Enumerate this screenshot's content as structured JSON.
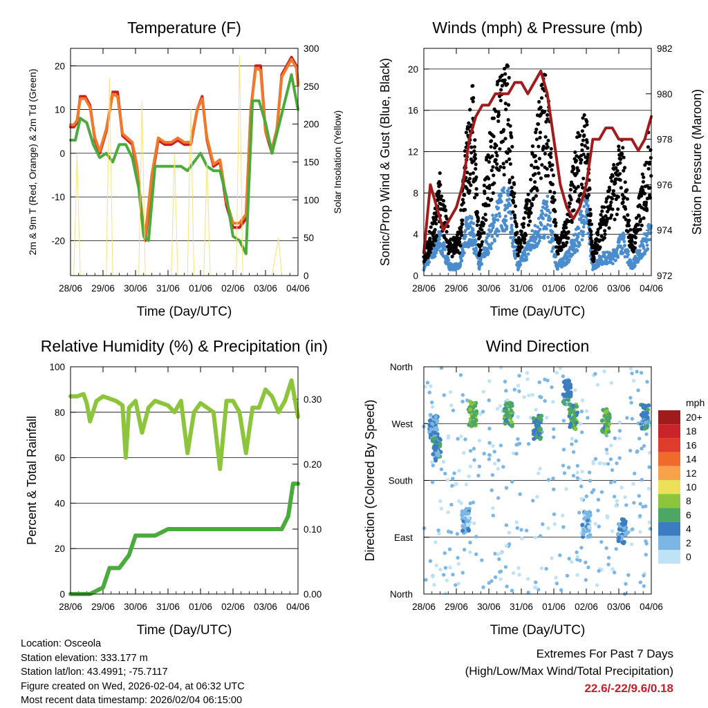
{
  "chart_data": [
    {
      "type": "line",
      "title": "Temperature (F)",
      "xlabel": "Time (Day/UTC)",
      "ylabel": "2m & 9m T (Red, Orange) & 2m Td (Green)",
      "y2label": "Solar Insolation (Yellow)",
      "categories": [
        "28/06",
        "29/06",
        "30/06",
        "31/06",
        "01/06",
        "02/06",
        "03/06",
        "04/06"
      ],
      "ylim": [
        -28,
        24
      ],
      "yticks": [
        "20",
        "10",
        "0",
        "-10",
        "-20"
      ],
      "yticks_values": [
        20,
        10,
        0,
        -10,
        -20
      ],
      "y2lim": [
        0,
        300
      ],
      "y2ticks": [
        "300",
        "250",
        "200",
        "150",
        "100",
        "50",
        "0"
      ],
      "y2ticks_values": [
        300,
        250,
        200,
        150,
        100,
        50,
        0
      ],
      "series": [
        {
          "name": "2m T",
          "color": "#c81e1e",
          "x": [
            0,
            0.1,
            0.2,
            0.3,
            0.45,
            0.6,
            0.75,
            0.9,
            1.1,
            1.3,
            1.45,
            1.6,
            1.75,
            1.9,
            2.05,
            2.2,
            2.3,
            2.5,
            2.7,
            2.9,
            3.1,
            3.3,
            3.5,
            3.7,
            3.9,
            4.05,
            4.2,
            4.4,
            4.6,
            4.8,
            5.0,
            5.2,
            5.4,
            5.55,
            5.7,
            5.85,
            6.0,
            6.2,
            6.35,
            6.5,
            6.65,
            6.8,
            6.95,
            7.0
          ],
          "y": [
            6,
            6,
            7,
            13,
            13,
            11,
            3,
            0,
            5,
            14,
            14,
            4,
            3,
            2,
            -4,
            -15,
            -20,
            -6,
            3,
            2,
            2,
            3,
            2,
            2,
            10,
            13,
            3,
            -3,
            -2,
            -12,
            -17,
            -17,
            -15,
            10,
            20,
            20,
            5,
            0,
            5,
            18,
            20,
            22,
            20,
            16
          ]
        },
        {
          "name": "9m T",
          "color": "#f07a2a",
          "x": [
            0,
            0.1,
            0.2,
            0.3,
            0.45,
            0.6,
            0.75,
            0.9,
            1.1,
            1.3,
            1.45,
            1.6,
            1.75,
            1.9,
            2.05,
            2.2,
            2.3,
            2.5,
            2.7,
            2.9,
            3.1,
            3.3,
            3.5,
            3.7,
            3.9,
            4.05,
            4.2,
            4.4,
            4.6,
            4.8,
            5.0,
            5.2,
            5.4,
            5.55,
            5.7,
            5.85,
            6.0,
            6.2,
            6.35,
            6.5,
            6.65,
            6.8,
            6.95,
            7.0
          ],
          "y": [
            6.5,
            6.5,
            7.5,
            12.5,
            12.5,
            10.5,
            3.5,
            0.5,
            5.5,
            13.5,
            13,
            4.5,
            3.5,
            2.5,
            -3,
            -14,
            -19,
            -5,
            3.5,
            2.5,
            2.5,
            3.5,
            2.5,
            2.5,
            10,
            12.5,
            3.5,
            -2.5,
            -1.5,
            -11,
            -16,
            -16,
            -14,
            10,
            19.5,
            19,
            5,
            1,
            5.5,
            17.5,
            19.5,
            21.5,
            19.5,
            15.5
          ]
        },
        {
          "name": "2m Td",
          "color": "#4aaa3c",
          "x": [
            0,
            0.15,
            0.3,
            0.5,
            0.7,
            0.9,
            1.1,
            1.3,
            1.5,
            1.7,
            1.9,
            2.1,
            2.25,
            2.4,
            2.6,
            2.8,
            3.0,
            3.2,
            3.4,
            3.6,
            3.8,
            4.0,
            4.2,
            4.4,
            4.6,
            4.8,
            5.0,
            5.2,
            5.4,
            5.6,
            5.8,
            6.0,
            6.2,
            6.4,
            6.6,
            6.8,
            7.0
          ],
          "y": [
            3,
            3,
            8,
            7,
            2,
            -1,
            0,
            -2,
            2,
            2,
            -1,
            -8,
            -19,
            -20,
            -3,
            -3,
            -3,
            -3,
            -3,
            -4,
            -2,
            0,
            -3,
            -4,
            -4,
            -10,
            -19,
            -20,
            -23,
            12,
            12,
            7,
            0,
            6,
            12,
            18,
            10
          ]
        },
        {
          "name": "Solar Insolation",
          "color": "#f5e27a",
          "axis": "y2",
          "x": [
            0.1,
            0.2,
            0.3,
            1.1,
            1.2,
            1.3,
            2.1,
            2.2,
            2.3,
            3.1,
            3.2,
            3.3,
            3.6,
            3.7,
            3.8,
            4.1,
            4.2,
            4.3,
            5.1,
            5.2,
            5.3,
            6.2,
            6.4,
            6.5
          ],
          "y": [
            0,
            160,
            0,
            0,
            260,
            0,
            0,
            230,
            0,
            0,
            160,
            0,
            0,
            220,
            0,
            0,
            150,
            0,
            0,
            290,
            0,
            0,
            50,
            0
          ]
        }
      ]
    },
    {
      "type": "scatter",
      "title": "Winds (mph) & Pressure (mb)",
      "xlabel": "Time (Day/UTC)",
      "ylabel": "Sonic/Prop Wind & Gust (Blue, Black)",
      "y2label": "Station Pressure (Maroon)",
      "categories": [
        "28/06",
        "29/06",
        "30/06",
        "31/06",
        "01/06",
        "02/06",
        "03/06",
        "04/06"
      ],
      "ylim": [
        0,
        22
      ],
      "yticks": [
        "20",
        "16",
        "12",
        "8",
        "4",
        "0"
      ],
      "yticks_values": [
        20,
        16,
        12,
        8,
        4,
        0
      ],
      "y2lim": [
        972,
        982
      ],
      "y2ticks": [
        "982",
        "980",
        "978",
        "976",
        "974",
        "972"
      ],
      "y2ticks_values": [
        982,
        980,
        978,
        976,
        974,
        972
      ],
      "series": [
        {
          "name": "Wind",
          "color": "#4a8ccc",
          "x": [
            0,
            0.3,
            0.5,
            0.8,
            1.1,
            1.3,
            1.5,
            1.7,
            2.0,
            2.3,
            2.6,
            2.9,
            3.2,
            3.5,
            3.8,
            4.1,
            4.4,
            4.7,
            5.0,
            5.2,
            5.5,
            5.8,
            6.1,
            6.4,
            6.7,
            7.0
          ],
          "y": [
            1,
            3,
            4,
            1,
            1,
            5,
            5,
            1,
            4,
            7,
            8,
            1,
            3,
            5,
            7,
            1,
            2,
            4,
            8,
            1,
            2,
            2,
            4,
            1,
            3,
            5
          ]
        },
        {
          "name": "Gust",
          "color": "#000000",
          "x": [
            0,
            0.3,
            0.5,
            0.8,
            1.1,
            1.3,
            1.5,
            1.7,
            2.0,
            2.3,
            2.6,
            2.9,
            3.2,
            3.5,
            3.8,
            4.1,
            4.4,
            4.7,
            5.0,
            5.2,
            5.5,
            5.8,
            6.1,
            6.4,
            6.7,
            7.0
          ],
          "y": [
            2,
            5,
            9,
            3,
            4,
            12,
            17,
            3,
            12,
            17,
            18,
            3,
            7,
            15,
            18,
            3,
            5,
            12,
            14,
            2,
            6,
            9,
            12,
            3,
            8,
            14
          ]
        },
        {
          "name": "Station Pressure",
          "color": "#a01c1c",
          "axis": "y2",
          "x": [
            0,
            0.2,
            0.4,
            0.6,
            0.8,
            1.0,
            1.2,
            1.4,
            1.6,
            1.8,
            2.0,
            2.2,
            2.4,
            2.6,
            2.8,
            3.0,
            3.2,
            3.4,
            3.6,
            3.8,
            4.0,
            4.2,
            4.4,
            4.6,
            4.8,
            5.0,
            5.2,
            5.4,
            5.6,
            5.8,
            6.0,
            6.2,
            6.4,
            6.6,
            6.8,
            7.0
          ],
          "y": [
            973,
            976,
            975,
            974,
            974.5,
            975,
            976,
            978,
            979,
            979.5,
            979.5,
            980,
            980,
            980,
            980.5,
            980.5,
            980,
            980.5,
            981,
            980,
            978,
            976,
            975,
            974.5,
            975,
            976,
            978,
            978,
            978.5,
            978.5,
            978,
            978,
            978,
            977.5,
            978,
            979
          ]
        }
      ]
    },
    {
      "type": "line",
      "title": "Relative Humidity (%) & Precipitation (in)",
      "xlabel": "Time (Day/UTC)",
      "ylabel": "Percent & Total Rainfall",
      "categories": [
        "28/06",
        "29/06",
        "30/06",
        "31/06",
        "01/06",
        "02/06",
        "03/06",
        "04/06"
      ],
      "ylim": [
        0,
        100
      ],
      "yticks": [
        "100",
        "80",
        "60",
        "40",
        "20",
        "0"
      ],
      "yticks_values": [
        100,
        80,
        60,
        40,
        20,
        0
      ],
      "y2lim": [
        0,
        0.35
      ],
      "y2ticks": [
        "0.30",
        "0.20",
        "0.10",
        "0.00"
      ],
      "y2ticks_values": [
        0.3,
        0.2,
        0.1,
        0.0
      ],
      "series": [
        {
          "name": "Relative Humidity",
          "color": "#8cc43c",
          "x": [
            0,
            0.2,
            0.4,
            0.5,
            0.6,
            0.8,
            1.0,
            1.2,
            1.4,
            1.6,
            1.7,
            1.8,
            2.0,
            2.2,
            2.4,
            2.6,
            2.8,
            3.0,
            3.2,
            3.4,
            3.6,
            3.8,
            4.0,
            4.2,
            4.4,
            4.6,
            4.8,
            5.0,
            5.2,
            5.4,
            5.6,
            5.8,
            6.0,
            6.2,
            6.4,
            6.6,
            6.8,
            7.0
          ],
          "y": [
            87,
            87,
            88,
            84,
            76,
            85,
            87,
            86,
            85,
            83,
            60,
            82,
            85,
            71,
            82,
            85,
            84,
            83,
            80,
            85,
            62,
            80,
            84,
            82,
            80,
            55,
            85,
            85,
            80,
            62,
            82,
            82,
            90,
            87,
            80,
            85,
            94,
            78
          ]
        },
        {
          "name": "Total Precipitation",
          "color": "#4aaa3c",
          "axis": "y2",
          "x": [
            0,
            0.2,
            0.6,
            1.0,
            1.2,
            1.5,
            1.8,
            2.0,
            2.2,
            2.6,
            3.0,
            3.6,
            4.0,
            4.4,
            5.0,
            5.4,
            6.0,
            6.5,
            6.7,
            6.85,
            7.0
          ],
          "y": [
            0,
            0,
            0,
            0.01,
            0.04,
            0.04,
            0.06,
            0.09,
            0.09,
            0.09,
            0.1,
            0.1,
            0.1,
            0.1,
            0.1,
            0.1,
            0.1,
            0.1,
            0.12,
            0.17,
            0.17
          ]
        }
      ]
    },
    {
      "type": "scatter",
      "title": "Wind Direction",
      "xlabel": "Time (Day/UTC)",
      "ylabel": "Direction (Colored By Speed)",
      "categories": [
        "28/06",
        "29/06",
        "30/06",
        "31/06",
        "01/06",
        "02/06",
        "03/06",
        "04/06"
      ],
      "ylim": [
        0,
        360
      ],
      "yticks": [
        "North",
        "West",
        "South",
        "East",
        "North"
      ],
      "yticks_values": [
        360,
        270,
        180,
        90,
        0
      ],
      "legend_unit": "mph",
      "legend_labels": [
        "20+",
        "18",
        "16",
        "14",
        "12",
        "10",
        "8",
        "6",
        "4",
        "2",
        "0"
      ],
      "legend_colors": [
        "#a01c1c",
        "#c8242a",
        "#e03c2c",
        "#f06a2c",
        "#f8a24a",
        "#ece05a",
        "#8cc43c",
        "#4aa864",
        "#3c7cc0",
        "#7cb6e4",
        "#bfe3f5"
      ],
      "clusters": [
        {
          "x": 0.3,
          "y": 265,
          "speed": 3
        },
        {
          "x": 0.4,
          "y": 230,
          "speed": 4
        },
        {
          "x": 1.5,
          "y": 285,
          "speed": 7
        },
        {
          "x": 2.6,
          "y": 285,
          "speed": 6
        },
        {
          "x": 3.5,
          "y": 265,
          "speed": 5
        },
        {
          "x": 4.4,
          "y": 320,
          "speed": 4
        },
        {
          "x": 4.6,
          "y": 280,
          "speed": 6
        },
        {
          "x": 5.6,
          "y": 275,
          "speed": 6
        },
        {
          "x": 6.8,
          "y": 280,
          "speed": 4
        },
        {
          "x": 1.3,
          "y": 115,
          "speed": 2
        },
        {
          "x": 5.0,
          "y": 110,
          "speed": 2
        },
        {
          "x": 6.1,
          "y": 100,
          "speed": 3
        }
      ]
    }
  ],
  "footer": {
    "location": "Location: Osceola",
    "elevation": "Station elevation: 333.177 m",
    "latlon": "Station lat/lon: 43.4991; -75.7117",
    "created": "Figure created on Wed, 2026-02-04, at 06:32 UTC",
    "recent": "Most recent data timestamp: 2026/02/04 06:15:00"
  },
  "extremes": {
    "title": "Extremes For Past 7 Days",
    "subtitle": "(High/Low/Max Wind/Total Precipitation)",
    "values": "22.6/-22/9.6/0.18"
  }
}
